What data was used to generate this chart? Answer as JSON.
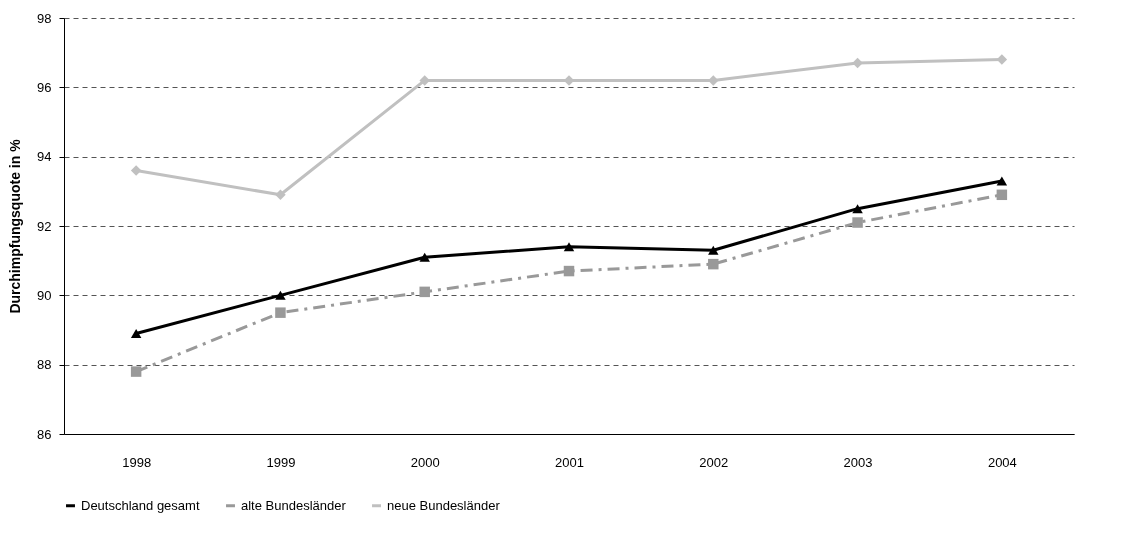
{
  "chart_data": {
    "type": "line",
    "ylabel": "Durchimpfungsquote in %",
    "categories": [
      "1998",
      "1999",
      "2000",
      "2001",
      "2002",
      "2003",
      "2004"
    ],
    "series": [
      {
        "name": "Deutschland gesamt",
        "color": "#000000",
        "marker": "triangle",
        "line_style": "solid",
        "values": [
          88.9,
          90.0,
          91.1,
          91.4,
          91.3,
          92.5,
          93.3
        ]
      },
      {
        "name": "alte Bundesländer",
        "color": "#999999",
        "marker": "square",
        "line_style": "dashed",
        "values": [
          87.8,
          89.5,
          90.1,
          90.7,
          90.9,
          92.1,
          92.9
        ]
      },
      {
        "name": "neue Bundesländer",
        "color": "#c0c0c0",
        "marker": "diamond",
        "line_style": "solid",
        "values": [
          93.6,
          92.9,
          96.2,
          96.2,
          96.2,
          96.7,
          96.8
        ]
      }
    ],
    "ylim": [
      86,
      98
    ],
    "yticks": [
      86,
      88,
      90,
      92,
      94,
      96,
      98
    ],
    "grid": "y",
    "legend": "bottom"
  }
}
